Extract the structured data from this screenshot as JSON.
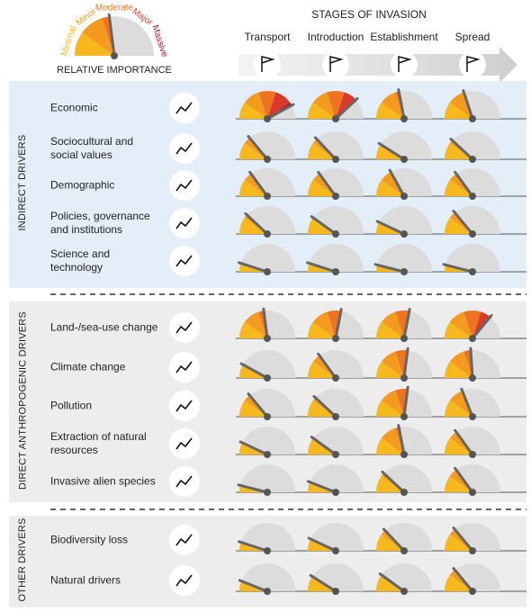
{
  "chart_data": {
    "type": "gauge",
    "title": "STAGES OF INVASION",
    "categories": [
      "Transport",
      "Introduction",
      "Establishment",
      "Spread"
    ],
    "legend_title": "RELATIVE IMPORTANCE",
    "levels": [
      "Minimal",
      "Minor",
      "Moderate",
      "Major",
      "Massive"
    ],
    "level_colors": [
      "#f6b81c",
      "#f49b1f",
      "#ee7423",
      "#da3a2c",
      "#a5193d"
    ],
    "example_value": 2.3,
    "ylim": [
      0,
      5
    ],
    "groups": [
      {
        "name": "INDIRECT DRIVERS",
        "drivers": [
          {
            "name": "Economic",
            "values": [
              4.2,
              3.8,
              2.2,
              2.0
            ]
          },
          {
            "name": "Sociocultural and social values",
            "values": [
              1.4,
              1.3,
              0.9,
              1.2
            ]
          },
          {
            "name": "Demographic",
            "values": [
              1.5,
              1.5,
              1.7,
              1.5
            ]
          },
          {
            "name": "Policies, governance and institutions",
            "values": [
              1.2,
              1.0,
              0.7,
              1.4
            ]
          },
          {
            "name": "Science and technology",
            "values": [
              0.5,
              0.5,
              0.4,
              0.4
            ]
          }
        ]
      },
      {
        "name": "DIRECT ANTHROPOGENIC DRIVERS",
        "drivers": [
          {
            "name": "Land-/sea-use change",
            "values": [
              2.3,
              2.8,
              2.8,
              3.6
            ]
          },
          {
            "name": "Climate change",
            "values": [
              0.8,
              1.5,
              2.7,
              2.4
            ]
          },
          {
            "name": "Pollution",
            "values": [
              1.4,
              1.2,
              2.7,
              1.9
            ]
          },
          {
            "name": "Extraction of natural resources",
            "values": [
              0.7,
              1.0,
              2.2,
              1.5
            ]
          },
          {
            "name": "Invasive alien species",
            "values": [
              0.4,
              0.6,
              1.2,
              1.5
            ]
          }
        ]
      },
      {
        "name": "OTHER DRIVERS",
        "drivers": [
          {
            "name": "Biodiversity loss",
            "values": [
              0.5,
              0.7,
              1.3,
              1.4
            ]
          },
          {
            "name": "Natural drivers",
            "values": [
              0.6,
              0.9,
              1.0,
              1.4
            ]
          }
        ]
      }
    ]
  }
}
